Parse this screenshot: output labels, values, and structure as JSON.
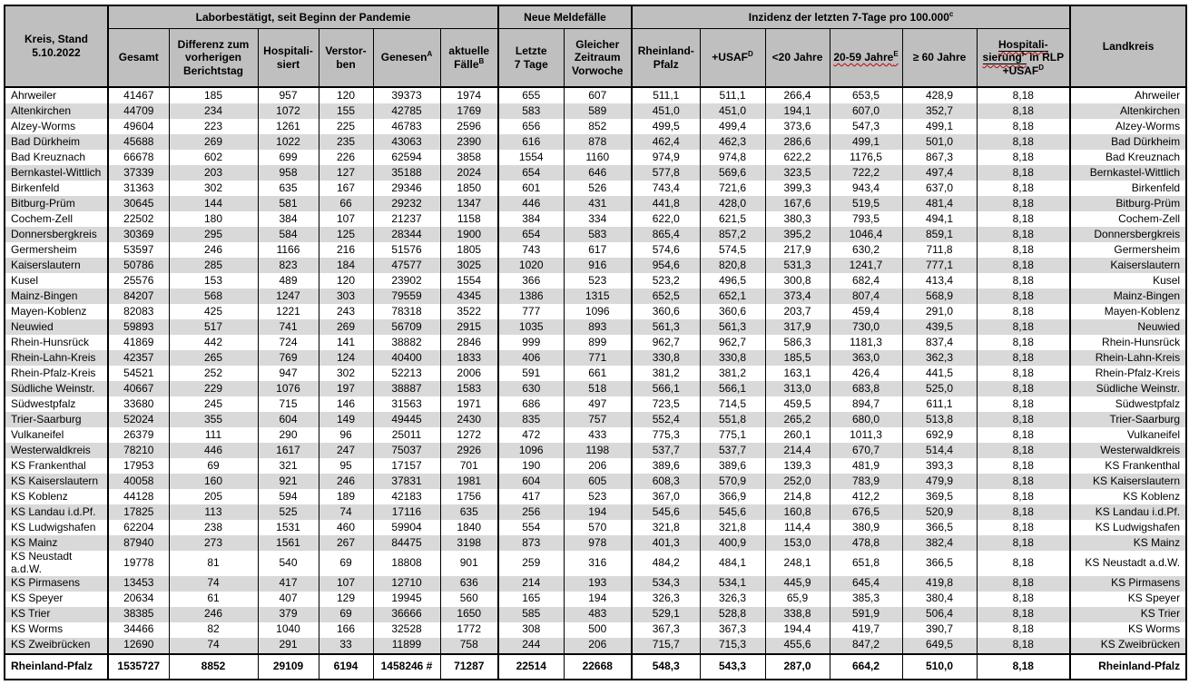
{
  "colors": {
    "header_bg": "#bfbfbf",
    "row_stripe_bg": "#d9d9d9",
    "border": "#000000",
    "spellcheck_squiggle": "#c00000"
  },
  "header": {
    "title": "Kreis, Stand\n5.10.2022",
    "groups": {
      "labor": "Laborbestätigt, seit Beginn der Pandemie",
      "melde": "Neue Meldefälle",
      "inzidenz": {
        "text": "Inzidenz der letzten 7-Tage pro 100.000",
        "sup": "c"
      }
    },
    "landkreis": "Landkreis",
    "columns": {
      "gesamt": "Gesamt",
      "differenz": "Differenz zum\nvorherigen\nBerichtstag",
      "hospitalisiert": "Hospitali-\nsiert",
      "verstorben": "Verstor-\nben",
      "genesen": {
        "text": "Genesen",
        "sup": "A"
      },
      "aktuelle": {
        "line1": "aktuelle",
        "line2": "Fälle",
        "sup": "B"
      },
      "letzte7": "Letzte\n7 Tage",
      "vorwoche": "Gleicher\nZeitraum\nVorwoche",
      "rlp": "Rheinland-\nPfalz",
      "usaf": {
        "text": "+USAF",
        "sup": "D"
      },
      "u20": "<20 Jahre",
      "j2059": {
        "text": "20-59 Jahre",
        "sup": "E"
      },
      "u60": "≥ 60 Jahre",
      "hosp_rlp": {
        "part1": "Hospitali-",
        "part2": "sierung",
        "sup2": "F",
        "part3": " in RLP",
        "part4": "+USAF",
        "sup4": "D"
      }
    }
  },
  "rows": [
    [
      "Ahrweiler",
      "41467",
      "185",
      "957",
      "120",
      "39373",
      "1974",
      "655",
      "607",
      "511,1",
      "511,1",
      "266,4",
      "653,5",
      "428,9",
      "8,18",
      "Ahrweiler"
    ],
    [
      "Altenkirchen",
      "44709",
      "234",
      "1072",
      "155",
      "42785",
      "1769",
      "583",
      "589",
      "451,0",
      "451,0",
      "194,1",
      "607,0",
      "352,7",
      "8,18",
      "Altenkirchen"
    ],
    [
      "Alzey-Worms",
      "49604",
      "223",
      "1261",
      "225",
      "46783",
      "2596",
      "656",
      "852",
      "499,5",
      "499,4",
      "373,6",
      "547,3",
      "499,1",
      "8,18",
      "Alzey-Worms"
    ],
    [
      "Bad Dürkheim",
      "45688",
      "269",
      "1022",
      "235",
      "43063",
      "2390",
      "616",
      "878",
      "462,4",
      "462,3",
      "286,6",
      "499,1",
      "501,0",
      "8,18",
      "Bad Dürkheim"
    ],
    [
      "Bad Kreuznach",
      "66678",
      "602",
      "699",
      "226",
      "62594",
      "3858",
      "1554",
      "1160",
      "974,9",
      "974,8",
      "622,2",
      "1176,5",
      "867,3",
      "8,18",
      "Bad Kreuznach"
    ],
    [
      "Bernkastel-Wittlich",
      "37339",
      "203",
      "958",
      "127",
      "35188",
      "2024",
      "654",
      "646",
      "577,8",
      "569,6",
      "323,5",
      "722,2",
      "497,4",
      "8,18",
      "Bernkastel-Wittlich"
    ],
    [
      "Birkenfeld",
      "31363",
      "302",
      "635",
      "167",
      "29346",
      "1850",
      "601",
      "526",
      "743,4",
      "721,6",
      "399,3",
      "943,4",
      "637,0",
      "8,18",
      "Birkenfeld"
    ],
    [
      "Bitburg-Prüm",
      "30645",
      "144",
      "581",
      "66",
      "29232",
      "1347",
      "446",
      "431",
      "441,8",
      "428,0",
      "167,6",
      "519,5",
      "481,4",
      "8,18",
      "Bitburg-Prüm"
    ],
    [
      "Cochem-Zell",
      "22502",
      "180",
      "384",
      "107",
      "21237",
      "1158",
      "384",
      "334",
      "622,0",
      "621,5",
      "380,3",
      "793,5",
      "494,1",
      "8,18",
      "Cochem-Zell"
    ],
    [
      "Donnersbergkreis",
      "30369",
      "295",
      "584",
      "125",
      "28344",
      "1900",
      "654",
      "583",
      "865,4",
      "857,2",
      "395,2",
      "1046,4",
      "859,1",
      "8,18",
      "Donnersbergkreis"
    ],
    [
      "Germersheim",
      "53597",
      "246",
      "1166",
      "216",
      "51576",
      "1805",
      "743",
      "617",
      "574,6",
      "574,5",
      "217,9",
      "630,2",
      "711,8",
      "8,18",
      "Germersheim"
    ],
    [
      "Kaiserslautern",
      "50786",
      "285",
      "823",
      "184",
      "47577",
      "3025",
      "1020",
      "916",
      "954,6",
      "820,8",
      "531,3",
      "1241,7",
      "777,1",
      "8,18",
      "Kaiserslautern"
    ],
    [
      "Kusel",
      "25576",
      "153",
      "489",
      "120",
      "23902",
      "1554",
      "366",
      "523",
      "523,2",
      "496,5",
      "300,8",
      "682,4",
      "413,4",
      "8,18",
      "Kusel"
    ],
    [
      "Mainz-Bingen",
      "84207",
      "568",
      "1247",
      "303",
      "79559",
      "4345",
      "1386",
      "1315",
      "652,5",
      "652,1",
      "373,4",
      "807,4",
      "568,9",
      "8,18",
      "Mainz-Bingen"
    ],
    [
      "Mayen-Koblenz",
      "82083",
      "425",
      "1221",
      "243",
      "78318",
      "3522",
      "777",
      "1096",
      "360,6",
      "360,6",
      "203,7",
      "459,4",
      "291,0",
      "8,18",
      "Mayen-Koblenz"
    ],
    [
      "Neuwied",
      "59893",
      "517",
      "741",
      "269",
      "56709",
      "2915",
      "1035",
      "893",
      "561,3",
      "561,3",
      "317,9",
      "730,0",
      "439,5",
      "8,18",
      "Neuwied"
    ],
    [
      "Rhein-Hunsrück",
      "41869",
      "442",
      "724",
      "141",
      "38882",
      "2846",
      "999",
      "899",
      "962,7",
      "962,7",
      "586,3",
      "1181,3",
      "837,4",
      "8,18",
      "Rhein-Hunsrück"
    ],
    [
      "Rhein-Lahn-Kreis",
      "42357",
      "265",
      "769",
      "124",
      "40400",
      "1833",
      "406",
      "771",
      "330,8",
      "330,8",
      "185,5",
      "363,0",
      "362,3",
      "8,18",
      "Rhein-Lahn-Kreis"
    ],
    [
      "Rhein-Pfalz-Kreis",
      "54521",
      "252",
      "947",
      "302",
      "52213",
      "2006",
      "591",
      "661",
      "381,2",
      "381,2",
      "163,1",
      "426,4",
      "441,5",
      "8,18",
      "Rhein-Pfalz-Kreis"
    ],
    [
      "Südliche Weinstr.",
      "40667",
      "229",
      "1076",
      "197",
      "38887",
      "1583",
      "630",
      "518",
      "566,1",
      "566,1",
      "313,0",
      "683,8",
      "525,0",
      "8,18",
      "Südliche Weinstr."
    ],
    [
      "Südwestpfalz",
      "33680",
      "245",
      "715",
      "146",
      "31563",
      "1971",
      "686",
      "497",
      "723,5",
      "714,5",
      "459,5",
      "894,7",
      "611,1",
      "8,18",
      "Südwestpfalz"
    ],
    [
      "Trier-Saarburg",
      "52024",
      "355",
      "604",
      "149",
      "49445",
      "2430",
      "835",
      "757",
      "552,4",
      "551,8",
      "265,2",
      "680,0",
      "513,8",
      "8,18",
      "Trier-Saarburg"
    ],
    [
      "Vulkaneifel",
      "26379",
      "111",
      "290",
      "96",
      "25011",
      "1272",
      "472",
      "433",
      "775,3",
      "775,1",
      "260,1",
      "1011,3",
      "692,9",
      "8,18",
      "Vulkaneifel"
    ],
    [
      "Westerwaldkreis",
      "78210",
      "446",
      "1617",
      "247",
      "75037",
      "2926",
      "1096",
      "1198",
      "537,7",
      "537,7",
      "214,4",
      "670,7",
      "514,4",
      "8,18",
      "Westerwaldkreis"
    ],
    [
      "KS Frankenthal",
      "17953",
      "69",
      "321",
      "95",
      "17157",
      "701",
      "190",
      "206",
      "389,6",
      "389,6",
      "139,3",
      "481,9",
      "393,3",
      "8,18",
      "KS Frankenthal"
    ],
    [
      "KS Kaiserslautern",
      "40058",
      "160",
      "921",
      "246",
      "37831",
      "1981",
      "604",
      "605",
      "608,3",
      "570,9",
      "252,0",
      "783,9",
      "479,9",
      "8,18",
      "KS Kaiserslautern"
    ],
    [
      "KS Koblenz",
      "44128",
      "205",
      "594",
      "189",
      "42183",
      "1756",
      "417",
      "523",
      "367,0",
      "366,9",
      "214,8",
      "412,2",
      "369,5",
      "8,18",
      "KS Koblenz"
    ],
    [
      "KS Landau i.d.Pf.",
      "17825",
      "113",
      "525",
      "74",
      "17116",
      "635",
      "256",
      "194",
      "545,6",
      "545,6",
      "160,8",
      "676,5",
      "520,9",
      "8,18",
      "KS Landau i.d.Pf."
    ],
    [
      "KS Ludwigshafen",
      "62204",
      "238",
      "1531",
      "460",
      "59904",
      "1840",
      "554",
      "570",
      "321,8",
      "321,8",
      "114,4",
      "380,9",
      "366,5",
      "8,18",
      "KS Ludwigshafen"
    ],
    [
      "KS Mainz",
      "87940",
      "273",
      "1561",
      "267",
      "84475",
      "3198",
      "873",
      "978",
      "401,3",
      "400,9",
      "153,0",
      "478,8",
      "382,4",
      "8,18",
      "KS Mainz"
    ],
    [
      "KS Neustadt a.d.W.",
      "19778",
      "81",
      "540",
      "69",
      "18808",
      "901",
      "259",
      "316",
      "484,2",
      "484,1",
      "248,1",
      "651,8",
      "366,5",
      "8,18",
      "KS Neustadt a.d.W."
    ],
    [
      "KS Pirmasens",
      "13453",
      "74",
      "417",
      "107",
      "12710",
      "636",
      "214",
      "193",
      "534,3",
      "534,1",
      "445,9",
      "645,4",
      "419,8",
      "8,18",
      "KS Pirmasens"
    ],
    [
      "KS Speyer",
      "20634",
      "61",
      "407",
      "129",
      "19945",
      "560",
      "165",
      "194",
      "326,3",
      "326,3",
      "65,9",
      "385,3",
      "380,4",
      "8,18",
      "KS Speyer"
    ],
    [
      "KS Trier",
      "38385",
      "246",
      "379",
      "69",
      "36666",
      "1650",
      "585",
      "483",
      "529,1",
      "528,8",
      "338,8",
      "591,9",
      "506,4",
      "8,18",
      "KS Trier"
    ],
    [
      "KS Worms",
      "34466",
      "82",
      "1040",
      "166",
      "32528",
      "1772",
      "308",
      "500",
      "367,3",
      "367,3",
      "194,4",
      "419,7",
      "390,7",
      "8,18",
      "KS Worms"
    ],
    [
      "KS Zweibrücken",
      "12690",
      "74",
      "291",
      "33",
      "11899",
      "758",
      "244",
      "206",
      "715,7",
      "715,3",
      "455,6",
      "847,2",
      "649,5",
      "8,18",
      "KS Zweibrücken"
    ]
  ],
  "total": [
    "Rheinland-Pfalz",
    "1535727",
    "8852",
    "29109",
    "6194",
    "1458246 #",
    "71287",
    "22514",
    "22668",
    "548,3",
    "543,3",
    "287,0",
    "664,2",
    "510,0",
    "8,18",
    "Rheinland-Pfalz"
  ]
}
